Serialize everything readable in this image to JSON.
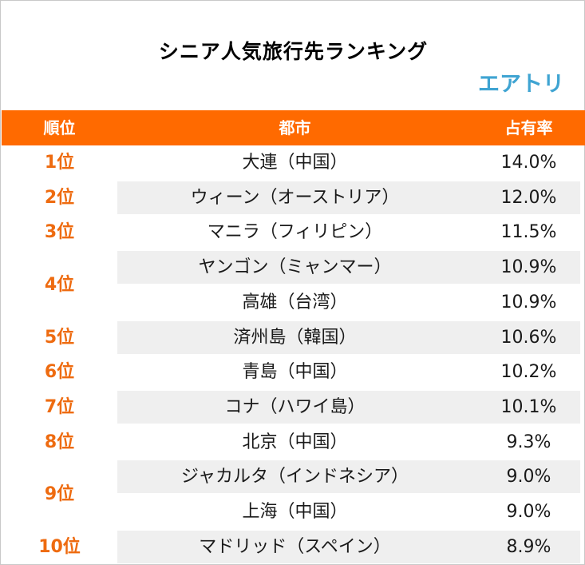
{
  "title": "シニア人気旅行先ランキング",
  "logo_text": "エアトリ",
  "colors": {
    "header_bg": "#ff6a00",
    "rank_text": "#ee6b10",
    "logo": "#3fa4d2",
    "row_shade": "#efefef"
  },
  "chart_data": {
    "type": "table",
    "title": "シニア人気旅行先ランキング",
    "columns": [
      "順位",
      "都市",
      "占有率"
    ],
    "ranks": [
      "1位",
      "2位",
      "3位",
      "4位",
      "5位",
      "6位",
      "7位",
      "8位",
      "9位",
      "10位"
    ],
    "rows": [
      {
        "rank": "1位",
        "city": "大連（中国）",
        "share": "14.0%"
      },
      {
        "rank": "2位",
        "city": "ウィーン（オーストリア）",
        "share": "12.0%"
      },
      {
        "rank": "3位",
        "city": "マニラ（フィリピン）",
        "share": "11.5%"
      },
      {
        "rank": "4位",
        "city": "ヤンゴン（ミャンマー）",
        "share": "10.9%"
      },
      {
        "rank": "4位",
        "city": "高雄（台湾）",
        "share": "10.9%"
      },
      {
        "rank": "5位",
        "city": "済州島（韓国）",
        "share": "10.6%"
      },
      {
        "rank": "6位",
        "city": "青島（中国）",
        "share": "10.2%"
      },
      {
        "rank": "7位",
        "city": "コナ（ハワイ島）",
        "share": "10.1%"
      },
      {
        "rank": "8位",
        "city": "北京（中国）",
        "share": "9.3%"
      },
      {
        "rank": "9位",
        "city": "ジャカルタ（インドネシア）",
        "share": "9.0%"
      },
      {
        "rank": "9位",
        "city": "上海（中国）",
        "share": "9.0%"
      },
      {
        "rank": "10位",
        "city": "マドリッド（スペイン）",
        "share": "8.9%"
      }
    ],
    "values": [
      14.0,
      12.0,
      11.5,
      10.9,
      10.9,
      10.6,
      10.2,
      10.1,
      9.3,
      9.0,
      9.0,
      8.9
    ]
  }
}
